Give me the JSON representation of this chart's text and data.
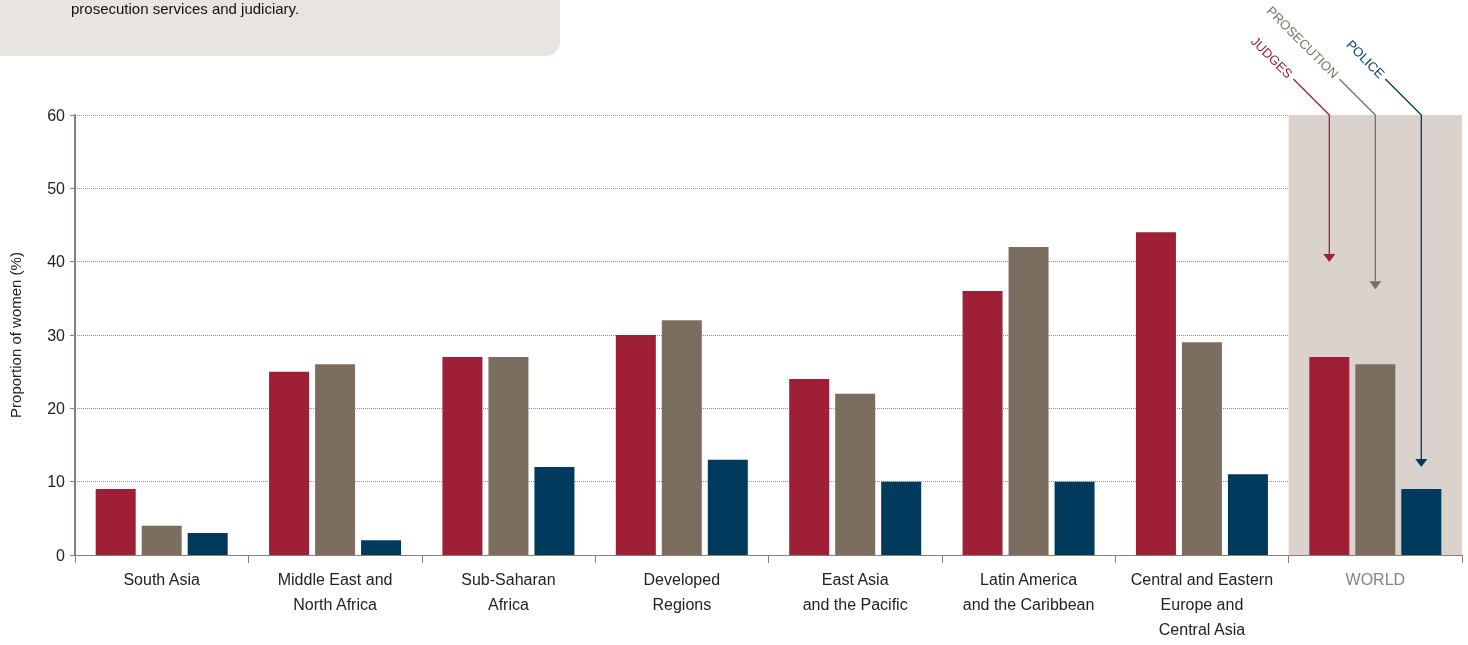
{
  "chart_data": {
    "type": "bar",
    "annotations": [
      "prosecution services and judiciary."
    ],
    "ylabel": "Proportion of women (%)",
    "categories": [
      "South Asia",
      "Middle East and\nNorth Africa",
      "Sub-Saharan\nAfrica",
      "Developed\nRegions",
      "East Asia\nand the Pacific",
      "Latin America\nand the Caribbean",
      "Central and Eastern\nEurope and\nCentral Asia",
      "WORLD"
    ],
    "series": [
      {
        "name": "JUDGES",
        "color": "#9e1f36",
        "values": [
          9,
          25,
          27,
          30,
          24,
          36,
          44,
          27
        ]
      },
      {
        "name": "PROSECUTION",
        "color": "#7b6e60",
        "values": [
          4,
          26,
          27,
          32,
          22,
          42,
          29,
          26
        ]
      },
      {
        "name": "POLICE",
        "color": "#003a5d",
        "values": [
          3,
          2,
          12,
          13,
          10,
          10,
          11,
          9
        ]
      }
    ],
    "bands": [
      {
        "axis": "x",
        "from": "WORLD",
        "to": "WORLD",
        "color": "#dad3cd"
      }
    ],
    "ylim": [
      0,
      60
    ],
    "yticks": [
      0,
      10,
      20,
      30,
      40,
      50,
      60
    ],
    "grid": "y"
  }
}
